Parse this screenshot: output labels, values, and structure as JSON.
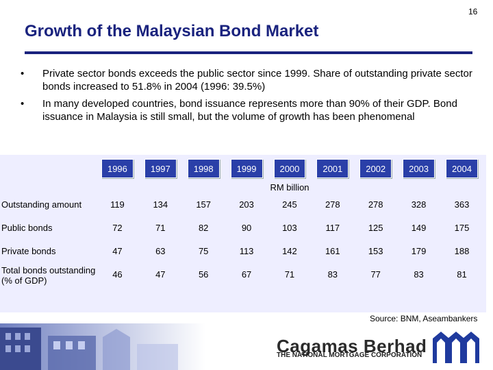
{
  "page_number": "16",
  "title": "Growth of the Malaysian Bond Market",
  "bullets": [
    "Private sector bonds exceeds the public sector since 1999.  Share of outstanding private sector bonds increased to 51.8% in 2004 (1996: 39.5%)",
    "In many developed countries, bond issuance represents more than 90% of their GDP. Bond issuance in Malaysia is still small, but the volume of growth has been phenomenal"
  ],
  "table": {
    "years": [
      "1996",
      "1997",
      "1998",
      "1999",
      "2000",
      "2001",
      "2002",
      "2003",
      "2004"
    ],
    "unit": "RM billion",
    "rows": [
      {
        "label": "Outstanding amount",
        "values": [
          "119",
          "134",
          "157",
          "203",
          "245",
          "278",
          "278",
          "328",
          "363"
        ]
      },
      {
        "label": "Public bonds",
        "values": [
          "72",
          "71",
          "82",
          "90",
          "103",
          "117",
          "125",
          "149",
          "175"
        ]
      },
      {
        "label": "Private bonds",
        "values": [
          "47",
          "63",
          "75",
          "113",
          "142",
          "161",
          "153",
          "179",
          "188"
        ]
      },
      {
        "label": "Total bonds outstanding (% of GDP)",
        "values": [
          "46",
          "47",
          "56",
          "67",
          "71",
          "83",
          "77",
          "83",
          "81"
        ]
      }
    ]
  },
  "source": "Source: BNM, Aseambankers",
  "footer": {
    "brand": "Cagamas Berhad",
    "tagline": "THE NATIONAL MORTGAGE CORPORATION"
  },
  "colors": {
    "title": "#1a237e",
    "year_header": "#2a3fa8",
    "table_bg": "#eeeeff"
  }
}
